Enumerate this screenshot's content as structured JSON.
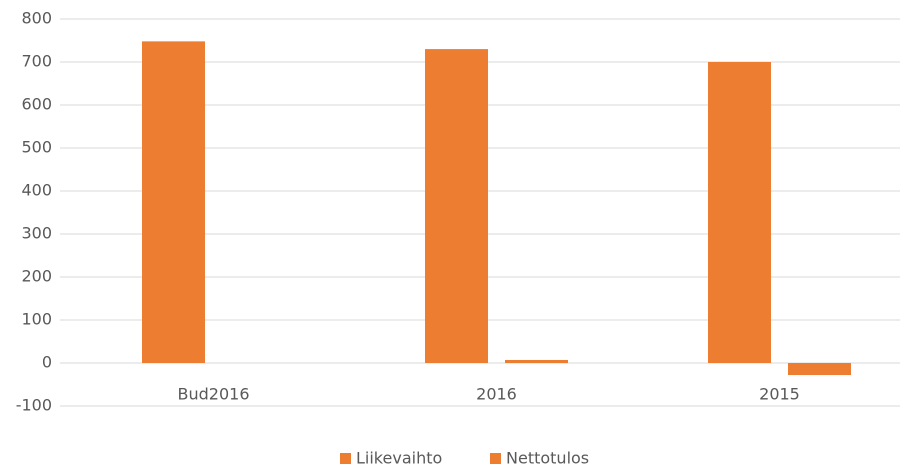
{
  "chart_data": {
    "type": "bar",
    "categories": [
      "Bud2016",
      "2016",
      "2015"
    ],
    "series": [
      {
        "name": "Liikevaihto",
        "color": "#ed7d31",
        "values": [
          748,
          730,
          700
        ]
      },
      {
        "name": "Nettotulos",
        "color": "#ed7d31",
        "values": [
          null,
          7,
          -28
        ]
      }
    ],
    "ylim": [
      -100,
      800
    ],
    "yticks": [
      -100,
      0,
      100,
      200,
      300,
      400,
      500,
      600,
      700,
      800
    ],
    "grid": true,
    "legend": "bottom"
  }
}
